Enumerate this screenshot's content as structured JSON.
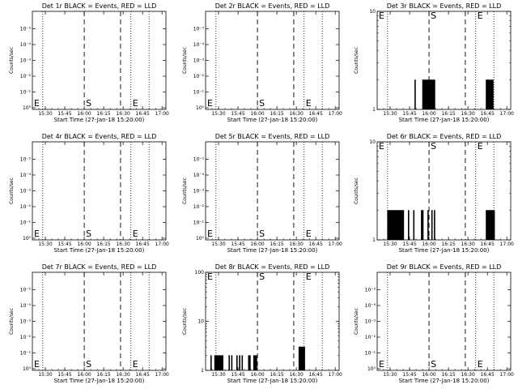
{
  "chart_data": [
    {
      "type": "line",
      "title": "Det 1r BLACK = Events, RED = LLD",
      "xlabel": "Start Time (27-Jan-18 15:20:00)",
      "ylabel": "Counts/sec",
      "yscale": "log",
      "ytick_mode": "exp",
      "ylim": [
        1,
        100000000
      ],
      "yticks": [
        "10⁰",
        "10⁻¹",
        "10⁻²",
        "10⁻³",
        "10⁻⁴",
        "10⁻⁵"
      ],
      "xtick_labels": [
        "15:30",
        "15:45",
        "16:00",
        "16:15",
        "16:30",
        "16:45",
        "17:00"
      ],
      "xlim": [
        "15:20",
        "17:03"
      ],
      "dotted_lines": [
        "15:28",
        "16:36",
        "16:50"
      ],
      "dashed_lines": [
        "16:00",
        "16:28"
      ],
      "markers": [
        {
          "label": "E",
          "time": "15:20"
        },
        {
          "label": "S",
          "time": "16:00"
        },
        {
          "label": "E",
          "time": "16:36"
        }
      ],
      "series": []
    },
    {
      "type": "line",
      "title": "Det 2r BLACK = Events, RED = LLD",
      "xlabel": "Start Time (27-Jan-18 15:20:00)",
      "ylabel": "Counts/sec",
      "yscale": "log",
      "ytick_mode": "exp",
      "ylim": [
        1,
        100000000
      ],
      "yticks": [
        "10⁰",
        "10⁻¹",
        "10⁻²",
        "10⁻³",
        "10⁻⁴",
        "10⁻⁵"
      ],
      "xtick_labels": [
        "15:30",
        "15:45",
        "16:00",
        "16:15",
        "16:30",
        "16:45",
        "17:00"
      ],
      "xlim": [
        "15:20",
        "17:03"
      ],
      "dotted_lines": [
        "15:28",
        "16:36",
        "16:50"
      ],
      "dashed_lines": [
        "16:00",
        "16:28"
      ],
      "markers": [
        {
          "label": "E",
          "time": "15:20"
        },
        {
          "label": "S",
          "time": "16:00"
        },
        {
          "label": "E",
          "time": "16:36"
        }
      ],
      "series": []
    },
    {
      "type": "line",
      "title": "Det 3r BLACK = Events, RED = LLD",
      "xlabel": "Start Time (27-Jan-18 15:20:00)",
      "ylabel": "Counts/sec",
      "yscale": "log",
      "ytick_mode": "num",
      "ylim": [
        1,
        10
      ],
      "yticks": [
        "1",
        "10"
      ],
      "xtick_labels": [
        "15:30",
        "15:45",
        "16:00",
        "16:15",
        "16:30",
        "16:45",
        "17:00"
      ],
      "xlim": [
        "15:20",
        "17:03"
      ],
      "dotted_lines": [
        "15:28",
        "16:36",
        "16:50"
      ],
      "dashed_lines": [
        "16:00",
        "16:28"
      ],
      "markers": [
        {
          "label": "E",
          "time": "15:20"
        },
        {
          "label": "S",
          "time": "16:00"
        },
        {
          "label": "E",
          "time": "16:36"
        }
      ],
      "series": [
        {
          "name": "Events",
          "time_min": [
            29,
            35,
            36,
            37,
            38,
            39,
            40,
            41,
            42,
            43,
            44,
            84,
            85,
            86,
            87,
            88,
            89
          ],
          "values": [
            2,
            2,
            2,
            2,
            2,
            2,
            2,
            2,
            2,
            2,
            2,
            2,
            2,
            2,
            2,
            2,
            2
          ]
        }
      ]
    },
    {
      "type": "line",
      "title": "Det 4r BLACK = Events, RED = LLD",
      "xlabel": "Start Time (27-Jan-18 15:20:00)",
      "ylabel": "Counts/sec",
      "yscale": "log",
      "ytick_mode": "exp",
      "ylim": [
        1,
        100000000
      ],
      "yticks": [
        "10⁰",
        "10⁻¹",
        "10⁻²",
        "10⁻³",
        "10⁻⁴",
        "10⁻⁵"
      ],
      "xtick_labels": [
        "15:30",
        "15:45",
        "16:00",
        "16:15",
        "16:30",
        "16:45",
        "17:00"
      ],
      "xlim": [
        "15:20",
        "17:03"
      ],
      "dotted_lines": [
        "15:28",
        "16:36",
        "16:50"
      ],
      "dashed_lines": [
        "16:00",
        "16:28"
      ],
      "markers": [
        {
          "label": "E",
          "time": "15:20"
        },
        {
          "label": "S",
          "time": "16:00"
        },
        {
          "label": "E",
          "time": "16:36"
        }
      ],
      "series": []
    },
    {
      "type": "line",
      "title": "Det 5r BLACK = Events, RED = LLD",
      "xlabel": "Start Time (27-Jan-18 15:20:00)",
      "ylabel": "Counts/sec",
      "yscale": "log",
      "ytick_mode": "exp",
      "ylim": [
        1,
        100000000
      ],
      "yticks": [
        "10⁰",
        "10⁻¹",
        "10⁻²",
        "10⁻³",
        "10⁻⁴",
        "10⁻⁵"
      ],
      "xtick_labels": [
        "15:30",
        "15:45",
        "16:00",
        "16:15",
        "16:30",
        "16:45",
        "17:00"
      ],
      "xlim": [
        "15:20",
        "17:03"
      ],
      "dotted_lines": [
        "15:28",
        "16:36",
        "16:50"
      ],
      "dashed_lines": [
        "16:00",
        "16:28"
      ],
      "markers": [
        {
          "label": "E",
          "time": "15:20"
        },
        {
          "label": "S",
          "time": "16:00"
        },
        {
          "label": "E",
          "time": "16:36"
        }
      ],
      "series": []
    },
    {
      "type": "line",
      "title": "Det 6r BLACK = Events, RED = LLD",
      "xlabel": "Start Time (27-Jan-18 15:20:00)",
      "ylabel": "Counts/sec",
      "yscale": "log",
      "ytick_mode": "num",
      "ylim": [
        1,
        10
      ],
      "yticks": [
        "1",
        "10"
      ],
      "xtick_labels": [
        "15:30",
        "15:45",
        "16:00",
        "16:15",
        "16:30",
        "16:45",
        "17:00"
      ],
      "xlim": [
        "15:20",
        "17:03"
      ],
      "dotted_lines": [
        "15:28",
        "16:36",
        "16:50"
      ],
      "dashed_lines": [
        "16:00",
        "16:28"
      ],
      "markers": [
        {
          "label": "E",
          "time": "15:20"
        },
        {
          "label": "S",
          "time": "16:00"
        },
        {
          "label": "E",
          "time": "16:36"
        }
      ],
      "series": [
        {
          "name": "Events",
          "time_min": [
            8,
            9,
            10,
            11,
            12,
            13,
            14,
            15,
            16,
            17,
            18,
            19,
            20,
            24,
            28,
            34,
            35,
            39,
            42,
            44,
            84,
            85,
            86,
            87,
            88,
            89,
            90
          ],
          "values": [
            2,
            2,
            2,
            2,
            2,
            2,
            2,
            2,
            2,
            2,
            2,
            2,
            2,
            2,
            2,
            2,
            2,
            2,
            2,
            2,
            2,
            2,
            2,
            2,
            2,
            2,
            2
          ]
        }
      ]
    },
    {
      "type": "line",
      "title": "Det 7r BLACK = Events, RED = LLD",
      "xlabel": "Start Time (27-Jan-18 15:20:00)",
      "ylabel": "Counts/sec",
      "yscale": "log",
      "ytick_mode": "exp",
      "ylim": [
        1,
        100000000
      ],
      "yticks": [
        "10⁰",
        "10⁻¹",
        "10⁻²",
        "10⁻³",
        "10⁻⁴",
        "10⁻⁵"
      ],
      "xtick_labels": [
        "15:30",
        "15:45",
        "16:00",
        "16:15",
        "16:30",
        "16:45",
        "17:00"
      ],
      "xlim": [
        "15:20",
        "17:03"
      ],
      "dotted_lines": [
        "15:28",
        "16:36",
        "16:50"
      ],
      "dashed_lines": [
        "16:00",
        "16:28"
      ],
      "markers": [
        {
          "label": "E",
          "time": "15:20"
        },
        {
          "label": "S",
          "time": "16:00"
        },
        {
          "label": "E",
          "time": "16:36"
        }
      ],
      "series": []
    },
    {
      "type": "line",
      "title": "Det 8r BLACK = Events, RED = LLD",
      "xlabel": "Start Time (27-Jan-18 15:20:00)",
      "ylabel": "Counts/sec",
      "yscale": "log",
      "ytick_mode": "num",
      "ylim": [
        1,
        100
      ],
      "yticks": [
        "1",
        "10",
        "100"
      ],
      "xtick_labels": [
        "15:30",
        "15:45",
        "16:00",
        "16:15",
        "16:30",
        "16:45",
        "17:00"
      ],
      "xlim": [
        "15:20",
        "17:03"
      ],
      "dotted_lines": [
        "15:28",
        "16:36",
        "16:50"
      ],
      "dashed_lines": [
        "16:00",
        "16:28"
      ],
      "markers": [
        {
          "label": "E",
          "time": "15:20"
        },
        {
          "label": "S",
          "time": "16:00"
        },
        {
          "label": "E",
          "time": "16:36"
        }
      ],
      "series": [
        {
          "name": "Events",
          "time_min": [
            4,
            7,
            8,
            9,
            10,
            11,
            12,
            13,
            18,
            20,
            24,
            26,
            28,
            33,
            34,
            37,
            38,
            39,
            72,
            73,
            74,
            75,
            76
          ],
          "values": [
            2,
            2,
            2,
            2,
            2,
            2,
            2,
            2,
            2,
            2,
            2,
            2,
            2,
            2,
            2,
            2,
            2,
            2,
            3,
            3,
            3,
            3,
            3
          ]
        }
      ]
    },
    {
      "type": "line",
      "title": "Det 9r BLACK = Events, RED = LLD",
      "xlabel": "Start Time (27-Jan-18 15:20:00)",
      "ylabel": "Counts/sec",
      "yscale": "log",
      "ytick_mode": "exp",
      "ylim": [
        1,
        100000000
      ],
      "yticks": [
        "10⁰",
        "10⁻¹",
        "10⁻²",
        "10⁻³",
        "10⁻⁴",
        "10⁻⁵"
      ],
      "xtick_labels": [
        "15:30",
        "15:45",
        "16:00",
        "16:15",
        "16:30",
        "16:45",
        "17:00"
      ],
      "xlim": [
        "15:20",
        "17:03"
      ],
      "dotted_lines": [
        "15:28",
        "16:36",
        "16:50"
      ],
      "dashed_lines": [
        "16:00",
        "16:28"
      ],
      "markers": [
        {
          "label": "E",
          "time": "15:20"
        },
        {
          "label": "S",
          "time": "16:00"
        },
        {
          "label": "E",
          "time": "16:36"
        }
      ],
      "series": []
    }
  ]
}
